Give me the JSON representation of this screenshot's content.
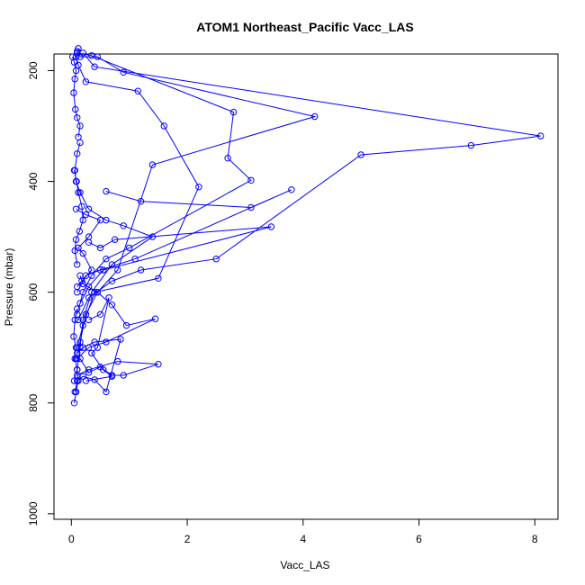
{
  "chart_data": {
    "type": "line",
    "title": "ATOM1 Northeast_Pacific Vacc_LAS",
    "xlabel": "Vacc_LAS",
    "ylabel": "Pressure (mbar)",
    "xlim": [
      -0.3,
      8.4
    ],
    "ylim": [
      1010,
      170
    ],
    "y_reversed": true,
    "x_ticks": [
      0,
      2,
      4,
      6,
      8
    ],
    "y_ticks": [
      200,
      400,
      600,
      800,
      1000
    ],
    "grid": false,
    "legend": "none",
    "color": "#0000FF",
    "marker": "open-circle",
    "series": [
      {
        "x": [
          0.05,
          0.1,
          0.15,
          0.2,
          0.35,
          0.7,
          1.4,
          0.9,
          0.6,
          0.3,
          0.15,
          0.08,
          0.06,
          0.1,
          0.15
        ],
        "y": [
          760,
          740,
          700,
          650,
          600,
          550,
          500,
          480,
          470,
          450,
          420,
          400,
          380,
          350,
          330
        ]
      },
      {
        "x": [
          0.1,
          0.2,
          0.4,
          1.5,
          2.2,
          1.6,
          1.15,
          0.25,
          0.12,
          0.08,
          0.1
        ],
        "y": [
          700,
          660,
          600,
          575,
          410,
          300,
          237,
          220,
          190,
          175,
          165
        ]
      },
      {
        "x": [
          0.08,
          0.15,
          0.25,
          0.45,
          0.8,
          1.4,
          4.2,
          0.9,
          0.45,
          0.15,
          0.12
        ],
        "y": [
          720,
          690,
          640,
          600,
          560,
          370,
          283,
          203,
          175,
          175,
          160
        ]
      },
      {
        "x": [
          0.1,
          0.2,
          0.35,
          0.6,
          1.0,
          3.1,
          2.7,
          2.8,
          0.35,
          0.1
        ],
        "y": [
          640,
          600,
          570,
          540,
          520,
          398,
          358,
          275,
          173,
          168
        ]
      },
      {
        "x": [
          0.12,
          0.3,
          0.7,
          1.2,
          2.5,
          5.0,
          6.9,
          8.1,
          0.4,
          0.2
        ],
        "y": [
          650,
          610,
          580,
          560,
          540,
          352,
          335,
          318,
          193,
          168
        ]
      },
      {
        "x": [
          0.1,
          0.25,
          0.5,
          1.1,
          3.8,
          3.1,
          1.2,
          0.6
        ],
        "y": [
          600,
          570,
          560,
          540,
          415,
          447,
          436,
          418
        ]
      },
      {
        "x": [
          0.15,
          0.3,
          0.55,
          3.45,
          0.75,
          0.5,
          0.3
        ],
        "y": [
          620,
          590,
          560,
          482,
          505,
          520,
          510
        ]
      },
      {
        "x": [
          0.1,
          0.3,
          0.6,
          1.45,
          0.95,
          0.7,
          0.45,
          0.2,
          0.15
        ],
        "y": [
          720,
          700,
          690,
          648,
          660,
          623,
          600,
          585,
          570
        ]
      },
      {
        "x": [
          0.1,
          0.3,
          0.8,
          1.5,
          0.9,
          0.7,
          0.5,
          0.3,
          0.15
        ],
        "y": [
          750,
          740,
          725,
          730,
          750,
          750,
          735,
          745,
          720
        ]
      },
      {
        "x": [
          0.06,
          0.1,
          0.2,
          0.4,
          0.6,
          0.85,
          0.4,
          0.2,
          0.1
        ],
        "y": [
          780,
          760,
          752,
          758,
          780,
          685,
          690,
          700,
          710
        ]
      },
      {
        "x": [
          0.1,
          0.18,
          0.35,
          0.2,
          0.12,
          0.3,
          0.5,
          0.25,
          0.08
        ],
        "y": [
          590,
          580,
          560,
          530,
          520,
          500,
          470,
          460,
          450
        ]
      },
      {
        "x": [
          0.05,
          0.08,
          0.12,
          0.1,
          0.06,
          0.08,
          0.04,
          0.06,
          0.1
        ],
        "y": [
          800,
          780,
          760,
          740,
          720,
          700,
          680,
          650,
          630
        ]
      },
      {
        "x": [
          0.02,
          0.05,
          0.08,
          0.06,
          0.04,
          0.07,
          0.1,
          0.15,
          0.12
        ],
        "y": [
          175,
          185,
          200,
          215,
          240,
          270,
          285,
          300,
          320
        ]
      },
      {
        "x": [
          0.05,
          0.09,
          0.12,
          0.18,
          0.2,
          0.14,
          0.08,
          0.06,
          0.1
        ],
        "y": [
          380,
          400,
          420,
          445,
          470,
          490,
          505,
          525,
          550
        ]
      },
      {
        "x": [
          0.3,
          0.5,
          0.65,
          0.45,
          0.35,
          0.55,
          0.7,
          0.25
        ],
        "y": [
          650,
          640,
          610,
          700,
          710,
          740,
          752,
          760
        ]
      }
    ]
  }
}
